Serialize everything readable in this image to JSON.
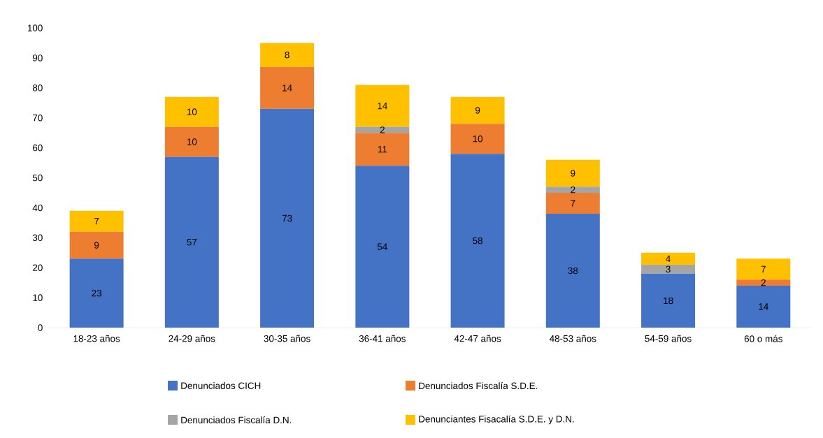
{
  "chart_data": {
    "type": "bar",
    "stacked": true,
    "data_labels": true,
    "grid": false,
    "legend": "bottom",
    "categories": [
      "18-23 años",
      "24-29 años",
      "30-35 años",
      "36-41 años",
      "42-47 años",
      "48-53 años",
      "54-59 años",
      "60 o más"
    ],
    "ylim": [
      0,
      100
    ],
    "yticks": [
      0,
      10,
      20,
      30,
      40,
      50,
      60,
      70,
      80,
      90,
      100
    ],
    "series": [
      {
        "name": "Denunciados CICH",
        "color": "#4472c4",
        "values": [
          23,
          57,
          73,
          54,
          58,
          38,
          18,
          14
        ]
      },
      {
        "name": "Denunciados Fiscalía S.D.E.",
        "color": "#ed7d31",
        "values": [
          9,
          10,
          14,
          11,
          10,
          7,
          null,
          2
        ]
      },
      {
        "name": "Denunciados Fiscalía D.N.",
        "color": "#a5a5a5",
        "values": [
          null,
          null,
          null,
          2,
          null,
          2,
          3,
          null
        ]
      },
      {
        "name": "Denunciantes Fisacalía S.D.E. y D.N.",
        "color": "#ffc000",
        "values": [
          7,
          10,
          8,
          14,
          9,
          9,
          4,
          7
        ]
      }
    ]
  }
}
